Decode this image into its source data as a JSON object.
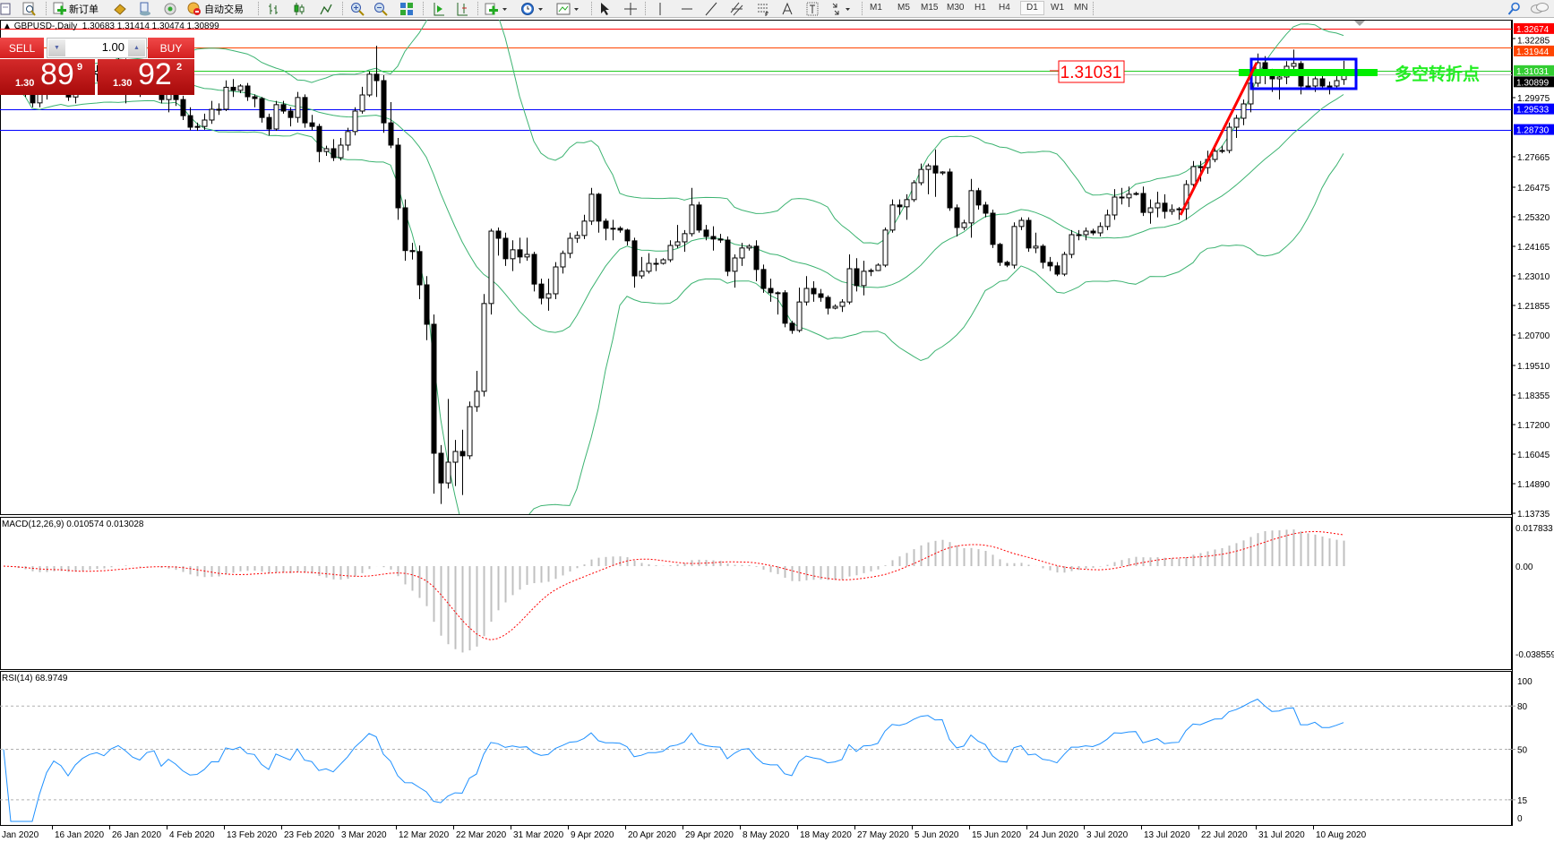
{
  "toolbar": {
    "new_order_label": "新订单",
    "autotrading_label": "自动交易",
    "periods": [
      "M1",
      "M5",
      "M15",
      "M30",
      "H1",
      "H4",
      "D1",
      "W1",
      "MN"
    ],
    "active_period": "D1",
    "icons": [
      "new-chart-icon",
      "profiles-icon",
      "new-order-icon",
      "market-watch-icon",
      "navigator-icon",
      "signals-icon",
      "autotrading-icon",
      "bar-chart-icon",
      "candlestick-icon",
      "line-chart-icon",
      "zoom-in-icon",
      "zoom-out-icon",
      "tile-windows-icon",
      "autoscroll-icon",
      "chart-shift-icon",
      "indicators-icon",
      "periods-icon",
      "templates-icon",
      "cursor-icon",
      "crosshair-icon",
      "vertical-line-icon",
      "horizontal-line-icon",
      "trendline-icon",
      "equidistant-channel-icon",
      "fibonacci-icon",
      "text-icon",
      "text-label-icon",
      "arrows-icon",
      "search-icon",
      "chat-icon"
    ]
  },
  "chart": {
    "title": "GBPUSD-,Daily  1.30683 1.31414 1.30474 1.30899",
    "symbol": "GBPUSD-",
    "timeframe": "Daily",
    "ohlc_header": [
      1.30683,
      1.31414,
      1.30474,
      1.30899
    ],
    "candle_colors": {
      "bull": "#ffffff",
      "bear": "#000000",
      "outline": "#000000"
    },
    "bands_color": "#3cb371",
    "price_axis_labels": [
      "1.32285",
      "1.29975",
      "1.27665",
      "1.26475",
      "1.25320",
      "1.24165",
      "1.23010",
      "1.21855",
      "1.20700",
      "1.19510",
      "1.18355",
      "1.17200",
      "1.16045",
      "1.14890",
      "1.13735"
    ],
    "hlines": [
      {
        "price": 1.32674,
        "label": "1.32674",
        "color": "#ff0000"
      },
      {
        "price": 1.31944,
        "label": "1.31944",
        "color": "#ff4500"
      },
      {
        "price": 1.30899,
        "label": "1.30899",
        "color": "#000000",
        "line_color": "#c0c0c0"
      },
      {
        "price": 1.31031,
        "label": "1.31031",
        "color": "#32cd32",
        "line_color": "#22cc22"
      },
      {
        "price": 1.29533,
        "label": "1.29533",
        "color": "#0000ff"
      },
      {
        "price": 1.2873,
        "label": "1.28730",
        "color": "#0000ff"
      }
    ],
    "price_callout": {
      "text": "1.31031",
      "color": "#ff0000"
    },
    "annotation_text": "多空转折点",
    "annotation_color": "#22ee22",
    "trendline_color": "#ff0000",
    "box_color": "#0000ff",
    "x_labels": [
      "Jan 2020",
      "16 Jan 2020",
      "26 Jan 2020",
      "4 Feb 2020",
      "13 Feb 2020",
      "23 Feb 2020",
      "3 Mar 2020",
      "12 Mar 2020",
      "22 Mar 2020",
      "31 Mar 2020",
      "9 Apr 2020",
      "20 Apr 2020",
      "29 Apr 2020",
      "8 May 2020",
      "18 May 2020",
      "27 May 2020",
      "5 Jun 2020",
      "15 Jun 2020",
      "24 Jun 2020",
      "3 Jul 2020",
      "13 Jul 2020",
      "22 Jul 2020",
      "31 Jul 2020",
      "10 Aug 2020"
    ]
  },
  "trade_panel": {
    "sell_label": "SELL",
    "buy_label": "BUY",
    "volume": "1.00",
    "sell_price": {
      "prefix": "1.30",
      "big": "89",
      "sup": "9"
    },
    "buy_price": {
      "prefix": "1.30",
      "big": "92",
      "sup": "2"
    }
  },
  "macd": {
    "label": "MACD(12,26,9) 0.010574 0.013028",
    "axis_labels": [
      "0.017833",
      "0.00",
      "-0.038559"
    ],
    "axis_values": [
      0.017833,
      0.0,
      -0.038559
    ],
    "histogram_color": "#c0c0c0",
    "signal_color": "#ff0000"
  },
  "rsi": {
    "label": "RSI(14) 68.9749",
    "axis_labels": [
      "100",
      "80",
      "50",
      "15",
      "0"
    ],
    "levels": [
      80,
      50,
      15
    ],
    "line_color": "#1e90ff"
  },
  "ohlc": [
    [
      1.315,
      1.32,
      1.3105,
      1.312
    ],
    [
      1.312,
      1.314,
      1.3065,
      1.3085
    ],
    [
      1.3085,
      1.311,
      1.303,
      1.305
    ],
    [
      1.305,
      1.308,
      1.3,
      1.303
    ],
    [
      1.303,
      1.3055,
      1.296,
      1.2977
    ],
    [
      1.2977,
      1.303,
      1.296,
      1.301
    ],
    [
      1.301,
      1.307,
      1.299,
      1.305
    ],
    [
      1.305,
      1.31,
      1.303,
      1.308
    ],
    [
      1.308,
      1.3105,
      1.304,
      1.306
    ],
    [
      1.306,
      1.3075,
      1.2985,
      1.3
    ],
    [
      1.3,
      1.306,
      1.2975,
      1.304
    ],
    [
      1.304,
      1.309,
      1.302,
      1.307
    ],
    [
      1.307,
      1.311,
      1.305,
      1.309
    ],
    [
      1.309,
      1.3125,
      1.306,
      1.31
    ],
    [
      1.31,
      1.312,
      1.3055,
      1.308
    ],
    [
      1.308,
      1.3145,
      1.3065,
      1.312
    ],
    [
      1.312,
      1.317,
      1.31,
      1.314
    ],
    [
      1.314,
      1.315,
      1.2975,
      1.311
    ],
    [
      1.311,
      1.3125,
      1.3035,
      1.307
    ],
    [
      1.307,
      1.309,
      1.3,
      1.305
    ],
    [
      1.305,
      1.311,
      1.303,
      1.309
    ],
    [
      1.309,
      1.312,
      1.306,
      1.31
    ],
    [
      1.31,
      1.3115,
      1.2975,
      1.299
    ],
    [
      1.299,
      1.305,
      1.294,
      1.303
    ],
    [
      1.303,
      1.3045,
      1.2965,
      1.299
    ],
    [
      1.299,
      1.3005,
      1.291,
      1.2927
    ],
    [
      1.2927,
      1.296,
      1.287,
      1.2882
    ],
    [
      1.2882,
      1.29,
      1.2868,
      1.2885
    ],
    [
      1.2885,
      1.2935,
      1.2872,
      1.291
    ],
    [
      1.291,
      1.2985,
      1.2895,
      1.2952
    ],
    [
      1.2952,
      1.2975,
      1.293,
      1.2952
    ],
    [
      1.2952,
      1.3065,
      1.2945,
      1.3038
    ],
    [
      1.3038,
      1.307,
      1.3,
      1.3026
    ],
    [
      1.3026,
      1.305,
      1.3015,
      1.3043
    ],
    [
      1.3043,
      1.3055,
      1.2985,
      1.3001
    ],
    [
      1.3001,
      1.301,
      1.296,
      1.2994
    ],
    [
      1.2994,
      1.3,
      1.29,
      1.292
    ],
    [
      1.292,
      1.2935,
      1.285,
      1.2875
    ],
    [
      1.2875,
      1.2985,
      1.2868,
      1.297
    ],
    [
      1.297,
      1.2985,
      1.2935,
      1.2945
    ],
    [
      1.2945,
      1.296,
      1.2885,
      1.292
    ],
    [
      1.292,
      1.302,
      1.29,
      1.2998
    ],
    [
      1.2998,
      1.301,
      1.288,
      1.2899
    ],
    [
      1.2899,
      1.293,
      1.287,
      1.2885
    ],
    [
      1.2885,
      1.2895,
      1.2745,
      1.2787
    ],
    [
      1.2787,
      1.281,
      1.277,
      1.2798
    ],
    [
      1.2798,
      1.2835,
      1.275,
      1.2763
    ],
    [
      1.2763,
      1.284,
      1.2752,
      1.2812
    ],
    [
      1.2812,
      1.288,
      1.279,
      1.2865
    ],
    [
      1.2865,
      1.296,
      1.285,
      1.2945
    ],
    [
      1.2945,
      1.304,
      1.2935,
      1.3008
    ],
    [
      1.3008,
      1.31,
      1.3,
      1.3089
    ],
    [
      1.3089,
      1.32,
      1.3,
      1.3064
    ],
    [
      1.3064,
      1.3085,
      1.286,
      1.2899
    ],
    [
      1.2899,
      1.298,
      1.28,
      1.2812
    ],
    [
      1.2812,
      1.284,
      1.252,
      1.2567
    ],
    [
      1.2567,
      1.26,
      1.236,
      1.24
    ],
    [
      1.24,
      1.243,
      1.2365,
      1.2396
    ],
    [
      1.2396,
      1.242,
      1.221,
      1.2266
    ],
    [
      1.2266,
      1.23,
      1.205,
      1.2112
    ],
    [
      1.2112,
      1.215,
      1.145,
      1.1608
    ],
    [
      1.1608,
      1.164,
      1.141,
      1.1492
    ],
    [
      1.1492,
      1.182,
      1.147,
      1.1573
    ],
    [
      1.1573,
      1.166,
      1.148,
      1.1615
    ],
    [
      1.1615,
      1.17,
      1.1445,
      1.1598
    ],
    [
      1.1598,
      1.181,
      1.1585,
      1.179
    ],
    [
      1.179,
      1.193,
      1.177,
      1.185
    ],
    [
      1.185,
      1.223,
      1.183,
      1.2193
    ],
    [
      1.2193,
      1.2485,
      1.215,
      1.2476
    ],
    [
      1.2476,
      1.249,
      1.238,
      1.2448
    ],
    [
      1.2448,
      1.247,
      1.234,
      1.2368
    ],
    [
      1.2368,
      1.244,
      1.232,
      1.2403
    ],
    [
      1.2403,
      1.245,
      1.235,
      1.2375
    ],
    [
      1.2375,
      1.245,
      1.236,
      1.2385
    ],
    [
      1.2385,
      1.2395,
      1.224,
      1.2269
    ],
    [
      1.2269,
      1.229,
      1.219,
      1.2214
    ],
    [
      1.2214,
      1.229,
      1.2165,
      1.2231
    ],
    [
      1.2231,
      1.2355,
      1.221,
      1.2336
    ],
    [
      1.2336,
      1.24,
      1.231,
      1.2389
    ],
    [
      1.2389,
      1.247,
      1.237,
      1.2448
    ],
    [
      1.2448,
      1.2475,
      1.243,
      1.2459
    ],
    [
      1.2459,
      1.254,
      1.2445,
      1.2515
    ],
    [
      1.2515,
      1.2645,
      1.25,
      1.262
    ],
    [
      1.262,
      1.2625,
      1.247,
      1.2515
    ],
    [
      1.2515,
      1.2525,
      1.244,
      1.2487
    ],
    [
      1.2487,
      1.252,
      1.244,
      1.2487
    ],
    [
      1.2487,
      1.2495,
      1.247,
      1.248
    ],
    [
      1.248,
      1.2485,
      1.242,
      1.2438
    ],
    [
      1.2438,
      1.245,
      1.2255,
      1.2301
    ],
    [
      1.2301,
      1.2375,
      1.229,
      1.2319
    ],
    [
      1.2319,
      1.239,
      1.231,
      1.235
    ],
    [
      1.235,
      1.237,
      1.232,
      1.235
    ],
    [
      1.235,
      1.237,
      1.2345,
      1.2364
    ],
    [
      1.2364,
      1.244,
      1.2355,
      1.242
    ],
    [
      1.242,
      1.25,
      1.241,
      1.2434
    ],
    [
      1.2434,
      1.248,
      1.2395,
      1.2466
    ],
    [
      1.2466,
      1.2645,
      1.2455,
      1.2578
    ],
    [
      1.2578,
      1.259,
      1.247,
      1.248
    ],
    [
      1.248,
      1.25,
      1.244,
      1.2455
    ],
    [
      1.2455,
      1.2495,
      1.24,
      1.2445
    ],
    [
      1.2445,
      1.2465,
      1.243,
      1.2441
    ],
    [
      1.2441,
      1.2455,
      1.23,
      1.2319
    ],
    [
      1.2319,
      1.2385,
      1.2255,
      1.2371
    ],
    [
      1.2371,
      1.243,
      1.234,
      1.241
    ],
    [
      1.241,
      1.2425,
      1.24,
      1.2417
    ],
    [
      1.2417,
      1.244,
      1.228,
      1.2326
    ],
    [
      1.2326,
      1.2345,
      1.2235,
      1.2252
    ],
    [
      1.2252,
      1.229,
      1.22,
      1.2235
    ],
    [
      1.2235,
      1.224,
      1.215,
      1.2235
    ],
    [
      1.2235,
      1.2245,
      1.21,
      1.2116
    ],
    [
      1.2116,
      1.2125,
      1.2075,
      1.2088
    ],
    [
      1.2088,
      1.2255,
      1.208,
      1.2199
    ],
    [
      1.2199,
      1.23,
      1.2185,
      1.2252
    ],
    [
      1.2252,
      1.228,
      1.22,
      1.2231
    ],
    [
      1.2231,
      1.225,
      1.22,
      1.2217
    ],
    [
      1.2217,
      1.2225,
      1.215,
      1.2175
    ],
    [
      1.2175,
      1.219,
      1.217,
      1.2182
    ],
    [
      1.2182,
      1.221,
      1.216,
      1.2199
    ],
    [
      1.2199,
      1.2385,
      1.219,
      1.2329
    ],
    [
      1.2329,
      1.237,
      1.224,
      1.2263
    ],
    [
      1.2263,
      1.236,
      1.2225,
      1.2319
    ],
    [
      1.2319,
      1.233,
      1.23,
      1.2322
    ],
    [
      1.2322,
      1.235,
      1.232,
      1.2343
    ],
    [
      1.2343,
      1.249,
      1.2335,
      1.248
    ],
    [
      1.248,
      1.26,
      1.247,
      1.2578
    ],
    [
      1.2578,
      1.26,
      1.254,
      1.2571
    ],
    [
      1.2571,
      1.262,
      1.252,
      1.2599
    ],
    [
      1.2599,
      1.2675,
      1.259,
      1.2665
    ],
    [
      1.2665,
      1.274,
      1.2655,
      1.2717
    ],
    [
      1.2717,
      1.274,
      1.262,
      1.2731
    ],
    [
      1.2731,
      1.2795,
      1.261,
      1.2703
    ],
    [
      1.2703,
      1.271,
      1.2695,
      1.2707
    ],
    [
      1.2707,
      1.272,
      1.2555,
      1.2567
    ],
    [
      1.2567,
      1.258,
      1.2455,
      1.249
    ],
    [
      1.249,
      1.252,
      1.248,
      1.2508
    ],
    [
      1.2508,
      1.268,
      1.245,
      1.2634
    ],
    [
      1.2634,
      1.2645,
      1.256,
      1.2578
    ],
    [
      1.2578,
      1.259,
      1.253,
      1.2546
    ],
    [
      1.2546,
      1.256,
      1.241,
      1.2424
    ],
    [
      1.2424,
      1.243,
      1.234,
      1.2354
    ],
    [
      1.2354,
      1.236,
      1.2335,
      1.2343
    ],
    [
      1.2343,
      1.251,
      1.233,
      1.2494
    ],
    [
      1.2494,
      1.253,
      1.248,
      1.2518
    ],
    [
      1.2518,
      1.253,
      1.2395,
      1.241
    ],
    [
      1.241,
      1.247,
      1.239,
      1.2417
    ],
    [
      1.2417,
      1.2425,
      1.233,
      1.2354
    ],
    [
      1.2354,
      1.2375,
      1.232,
      1.234
    ],
    [
      1.234,
      1.2355,
      1.23,
      1.2308
    ],
    [
      1.2308,
      1.2395,
      1.23,
      1.2385
    ],
    [
      1.2385,
      1.248,
      1.237,
      1.2462
    ],
    [
      1.2462,
      1.248,
      1.244,
      1.2462
    ],
    [
      1.2462,
      1.249,
      1.244,
      1.2476
    ],
    [
      1.2476,
      1.2485,
      1.246,
      1.2469
    ],
    [
      1.2469,
      1.251,
      1.2455,
      1.2494
    ],
    [
      1.2494,
      1.256,
      1.248,
      1.2539
    ],
    [
      1.2539,
      1.264,
      1.252,
      1.2609
    ],
    [
      1.2609,
      1.2645,
      1.258,
      1.2606
    ],
    [
      1.2606,
      1.265,
      1.257,
      1.262
    ],
    [
      1.262,
      1.263,
      1.2615,
      1.2623
    ],
    [
      1.2623,
      1.265,
      1.2535,
      1.2549
    ],
    [
      1.2549,
      1.26,
      1.2505,
      1.2567
    ],
    [
      1.2567,
      1.263,
      1.253,
      1.2585
    ],
    [
      1.2585,
      1.262,
      1.2525,
      1.2553
    ],
    [
      1.2553,
      1.258,
      1.254,
      1.256
    ],
    [
      1.256,
      1.257,
      1.252,
      1.2563
    ],
    [
      1.2563,
      1.2675,
      1.252,
      1.2658
    ],
    [
      1.2658,
      1.275,
      1.264,
      1.2728
    ],
    [
      1.2728,
      1.275,
      1.267,
      1.2724
    ],
    [
      1.2724,
      1.279,
      1.27,
      1.2756
    ],
    [
      1.2756,
      1.281,
      1.2745,
      1.2788
    ],
    [
      1.2788,
      1.281,
      1.278,
      1.2791
    ],
    [
      1.2791,
      1.29,
      1.278,
      1.2882
    ],
    [
      1.2882,
      1.293,
      1.284,
      1.2917
    ],
    [
      1.2917,
      1.299,
      1.289,
      1.2973
    ],
    [
      1.2973,
      1.306,
      1.294,
      1.3054
    ],
    [
      1.3054,
      1.317,
      1.304,
      1.3134
    ],
    [
      1.3134,
      1.316,
      1.305,
      1.31
    ],
    [
      1.31,
      1.311,
      1.302,
      1.3071
    ],
    [
      1.3071,
      1.31,
      1.299,
      1.3078
    ],
    [
      1.3078,
      1.314,
      1.305,
      1.312
    ],
    [
      1.312,
      1.3185,
      1.311,
      1.3131
    ],
    [
      1.3131,
      1.314,
      1.301,
      1.3043
    ],
    [
      1.3043,
      1.308,
      1.303,
      1.3043
    ],
    [
      1.3043,
      1.308,
      1.302,
      1.3071
    ],
    [
      1.3071,
      1.3105,
      1.303,
      1.3043
    ],
    [
      1.3043,
      1.306,
      1.301,
      1.3043
    ],
    [
      1.3043,
      1.309,
      1.3035,
      1.3064
    ],
    [
      1.30683,
      1.31414,
      1.30474,
      1.30899
    ]
  ]
}
